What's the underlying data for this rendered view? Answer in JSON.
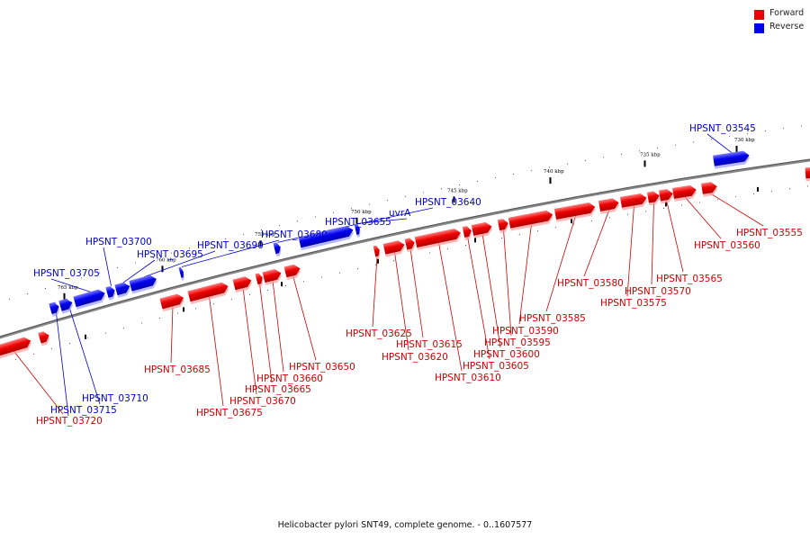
{
  "legend": [
    {
      "label": "Forward",
      "color": "#ee0000"
    },
    {
      "label": "Reverse",
      "color": "#0000ee"
    }
  ],
  "caption": "Helicobacter pylori SNT49, complete genome. - 0..1607577",
  "colors": {
    "forward": "#ee0000",
    "reverse": "#0000ee",
    "backbone": "#777777",
    "connector_forward": "#cc0000",
    "connector_reverse": "#0000cc"
  },
  "kbp_ticks": [
    "730 kbp",
    "735 kbp",
    "740 kbp",
    "745 kbp",
    "750 kbp",
    "755 kbp",
    "760 kbp",
    "765 kbp"
  ],
  "genes": [
    {
      "label": "HPSNT_03545",
      "strand": "reverse"
    },
    {
      "label": "HPSNT_03555",
      "strand": "forward"
    },
    {
      "label": "HPSNT_03560",
      "strand": "forward"
    },
    {
      "label": "HPSNT_03565",
      "strand": "forward"
    },
    {
      "label": "HPSNT_03570",
      "strand": "forward"
    },
    {
      "label": "HPSNT_03575",
      "strand": "forward"
    },
    {
      "label": "HPSNT_03580",
      "strand": "forward"
    },
    {
      "label": "HPSNT_03585",
      "strand": "forward"
    },
    {
      "label": "HPSNT_03590",
      "strand": "forward"
    },
    {
      "label": "HPSNT_03595",
      "strand": "forward"
    },
    {
      "label": "HPSNT_03600",
      "strand": "forward"
    },
    {
      "label": "HPSNT_03605",
      "strand": "forward"
    },
    {
      "label": "HPSNT_03610",
      "strand": "forward"
    },
    {
      "label": "HPSNT_03615",
      "strand": "forward"
    },
    {
      "label": "HPSNT_03620",
      "strand": "forward"
    },
    {
      "label": "HPSNT_03625",
      "strand": "forward"
    },
    {
      "label": "HPSNT_03640",
      "strand": "reverse"
    },
    {
      "label": "uvrA",
      "strand": "reverse"
    },
    {
      "label": "HPSNT_03655",
      "strand": "reverse"
    },
    {
      "label": "HPSNT_03650",
      "strand": "forward"
    },
    {
      "label": "HPSNT_03660",
      "strand": "forward"
    },
    {
      "label": "HPSNT_03665",
      "strand": "forward"
    },
    {
      "label": "HPSNT_03670",
      "strand": "forward"
    },
    {
      "label": "HPSNT_03675",
      "strand": "forward"
    },
    {
      "label": "HPSNT_03680",
      "strand": "reverse"
    },
    {
      "label": "HPSNT_03685",
      "strand": "forward"
    },
    {
      "label": "HPSNT_03690",
      "strand": "reverse"
    },
    {
      "label": "HPSNT_03695",
      "strand": "reverse"
    },
    {
      "label": "HPSNT_03700",
      "strand": "reverse"
    },
    {
      "label": "HPSNT_03705",
      "strand": "reverse"
    },
    {
      "label": "HPSNT_03710",
      "strand": "reverse"
    },
    {
      "label": "HPSNT_03715",
      "strand": "reverse"
    },
    {
      "label": "HPSNT_03720",
      "strand": "forward"
    }
  ]
}
